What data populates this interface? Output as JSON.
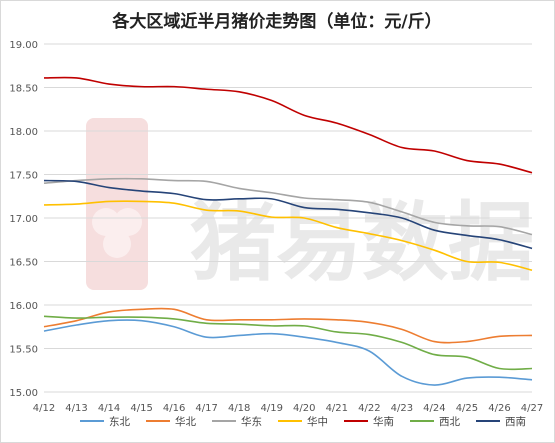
{
  "chart_data": {
    "type": "line",
    "title": "各大区域近半月猪价走势图（单位：元/斤）",
    "watermark": "猪易数据",
    "categories": [
      "4/12",
      "4/13",
      "4/14",
      "4/15",
      "4/16",
      "4/17",
      "4/18",
      "4/19",
      "4/20",
      "4/21",
      "4/22",
      "4/23",
      "4/24",
      "4/25",
      "4/26",
      "4/27"
    ],
    "ylim": [
      15.0,
      19.0
    ],
    "yticks": [
      "15.00",
      "15.50",
      "16.00",
      "16.50",
      "17.00",
      "17.50",
      "18.00",
      "18.50",
      "19.00"
    ],
    "grid": true,
    "legend_position": "bottom",
    "series": [
      {
        "name": "东北",
        "color": "#5b9bd5",
        "values": [
          15.7,
          15.77,
          15.82,
          15.82,
          15.75,
          15.63,
          15.65,
          15.67,
          15.63,
          15.57,
          15.47,
          15.18,
          15.08,
          15.16,
          15.17,
          15.14
        ]
      },
      {
        "name": "华北",
        "color": "#ed7d31",
        "values": [
          15.75,
          15.82,
          15.92,
          15.95,
          15.95,
          15.83,
          15.83,
          15.83,
          15.84,
          15.83,
          15.8,
          15.72,
          15.58,
          15.58,
          15.64,
          15.65
        ]
      },
      {
        "name": "华东",
        "color": "#a5a5a5",
        "values": [
          17.4,
          17.43,
          17.45,
          17.45,
          17.43,
          17.42,
          17.34,
          17.29,
          17.23,
          17.21,
          17.18,
          17.07,
          16.95,
          16.91,
          16.9,
          16.81
        ]
      },
      {
        "name": "华中",
        "color": "#ffc000",
        "values": [
          17.15,
          17.16,
          17.19,
          17.19,
          17.17,
          17.09,
          17.08,
          17.01,
          17.0,
          16.89,
          16.82,
          16.74,
          16.63,
          16.5,
          16.49,
          16.4
        ]
      },
      {
        "name": "华南",
        "color": "#c00000",
        "values": [
          18.61,
          18.61,
          18.54,
          18.51,
          18.51,
          18.48,
          18.45,
          18.35,
          18.18,
          18.09,
          17.96,
          17.81,
          17.77,
          17.66,
          17.62,
          17.52
        ]
      },
      {
        "name": "西北",
        "color": "#70ad47",
        "values": [
          15.87,
          15.85,
          15.86,
          15.86,
          15.84,
          15.79,
          15.78,
          15.76,
          15.76,
          15.69,
          15.66,
          15.57,
          15.43,
          15.4,
          15.27,
          15.27
        ]
      },
      {
        "name": "西南",
        "color": "#264478",
        "values": [
          17.43,
          17.42,
          17.35,
          17.31,
          17.28,
          17.21,
          17.22,
          17.22,
          17.12,
          17.1,
          17.06,
          17.0,
          16.86,
          16.8,
          16.75,
          16.65
        ]
      }
    ]
  }
}
